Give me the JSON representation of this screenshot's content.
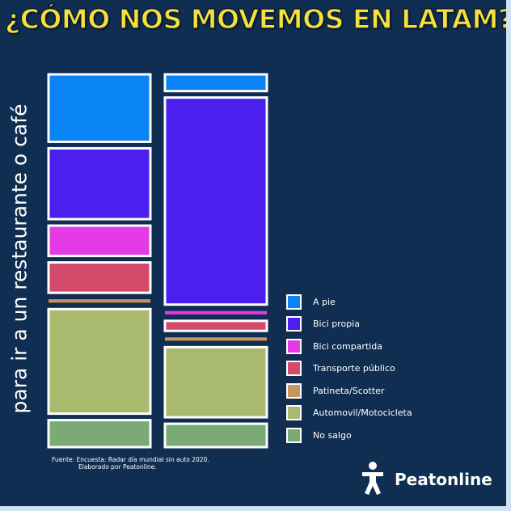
{
  "title": "¿CÓMO NOS MOVEMOS EN LATAM?",
  "brand": "Peatonline",
  "source": {
    "line1": "Fuente:   Encuesta: Radar día mundial sin auto 2020.",
    "line2": "Elaborado por Peatonline."
  },
  "colors": {
    "background": "#102e52",
    "title": "#f6e13c",
    "border": "#ffffff"
  },
  "chart_data": {
    "type": "bar",
    "stacked": true,
    "normalized": true,
    "ylabel": "para ir a un restaurante o café",
    "categories": [
      "",
      ""
    ],
    "series": [
      {
        "name": "A pie",
        "color": "#0a84f5",
        "values": [
          20,
          5
        ]
      },
      {
        "name": "Bici propia",
        "color": "#4a1ff0",
        "values": [
          21,
          62
        ]
      },
      {
        "name": "Bici compartida",
        "color": "#e43be6",
        "values": [
          9,
          1
        ]
      },
      {
        "name": "Transporte público",
        "color": "#d44a6a",
        "values": [
          9,
          3
        ]
      },
      {
        "name": "Patineta/Scotter",
        "color": "#c8955e",
        "values": [
          1,
          1
        ]
      },
      {
        "name": "Automovil/Motocicleta",
        "color": "#a9b96e",
        "values": [
          31,
          21
        ]
      },
      {
        "name": "No salgo",
        "color": "#7caa74",
        "values": [
          8,
          7
        ]
      }
    ],
    "legend_position": "right",
    "grid": false
  }
}
